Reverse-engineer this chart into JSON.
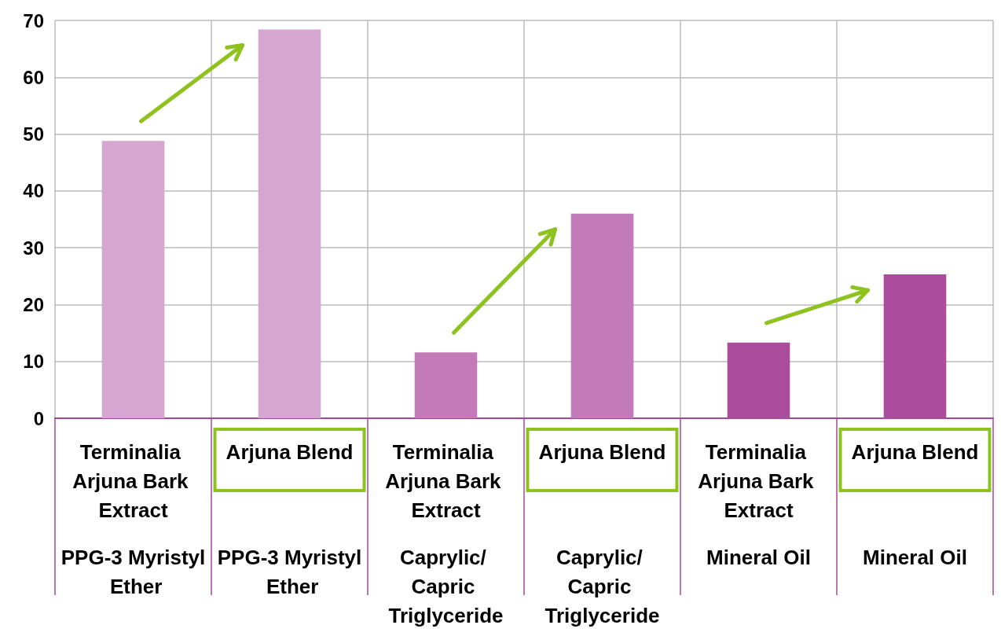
{
  "chart_data": {
    "type": "bar",
    "categories": [
      "Terminalia Arjuna Bark Extract",
      "Arjuna Blend",
      "Terminalia Arjuna Bark Extract",
      "Arjuna Blend",
      "Terminalia Arjuna Bark Extract",
      "Arjuna Blend"
    ],
    "values": [
      48.8,
      68.4,
      11.6,
      36,
      13.3,
      25.3
    ],
    "colors": [
      "#d5a6cf",
      "#d5a6cf",
      "#c27bb8",
      "#c27bb8",
      "#ab4c9c",
      "#ab4c9c"
    ],
    "annotations": [
      "PPG-3 Myristyl Ether",
      "PPG-3 Myristyl Ether",
      "Caprylic/ Capric Triglyceride",
      "Caprylic/ Capric Triglyceride",
      "Mineral Oil",
      "Mineral Oil"
    ],
    "ylim": [
      0,
      70
    ],
    "yticks": [
      0,
      10,
      20,
      30,
      40,
      50,
      60,
      70
    ],
    "grid": true
  }
}
